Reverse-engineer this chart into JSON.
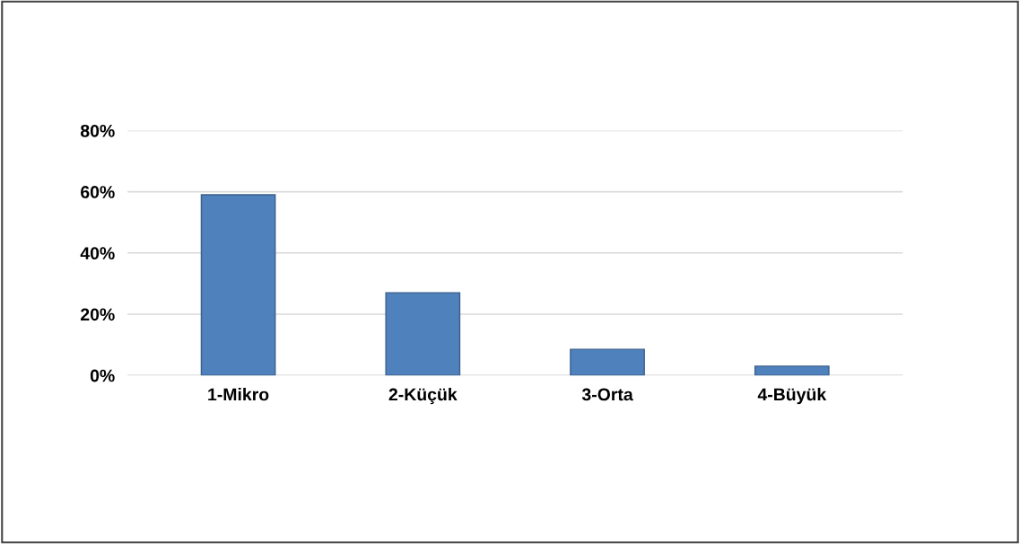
{
  "chart_data": {
    "type": "bar",
    "categories": [
      "1-Mikro",
      "2-Küçük",
      "3-Orta",
      "4-Büyük"
    ],
    "values": [
      59,
      27,
      8.5,
      3
    ],
    "color": "#4f81bd",
    "ylim": [
      0,
      80
    ],
    "yticks": [
      {
        "value": 0,
        "label": "0%"
      },
      {
        "value": 20,
        "label": "20%"
      },
      {
        "value": 40,
        "label": "40%"
      },
      {
        "value": 60,
        "label": "60%"
      },
      {
        "value": 80,
        "label": "80%"
      }
    ],
    "grid": "y",
    "legend": false
  }
}
